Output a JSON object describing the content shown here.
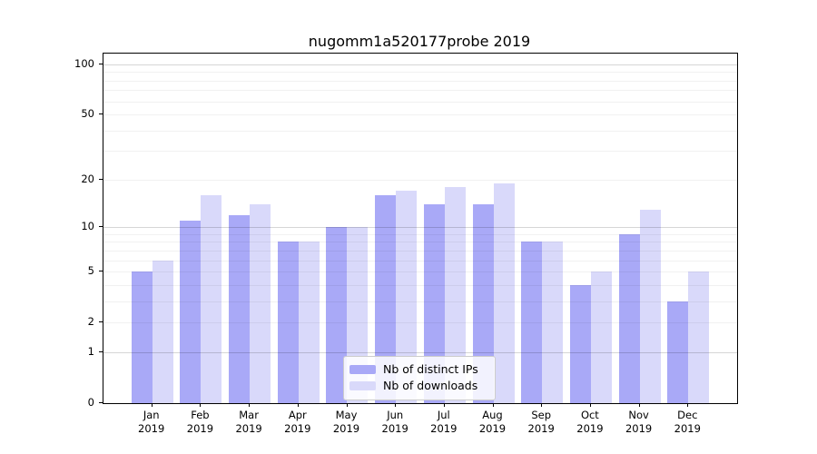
{
  "chart_data": {
    "type": "bar",
    "title": "nugomm1a520177probe 2019",
    "xlabel": "",
    "ylabel": "",
    "categories": [
      "Jan",
      "Feb",
      "Mar",
      "Apr",
      "May",
      "Jun",
      "Jul",
      "Aug",
      "Sep",
      "Oct",
      "Nov",
      "Dec"
    ],
    "x_year_label": "2019",
    "series": [
      {
        "name": "Nb of distinct IPs",
        "color": "#a9a9f7",
        "values": [
          5,
          11,
          12,
          8,
          10,
          16,
          14,
          14,
          8,
          4,
          9,
          3
        ]
      },
      {
        "name": "Nb of downloads",
        "color": "#d9d9fa",
        "values": [
          6,
          16,
          14,
          8,
          10,
          17,
          18,
          19,
          8,
          5,
          13,
          5
        ]
      }
    ],
    "y_axis": {
      "scale": "log1p",
      "ylim": [
        0,
        116
      ],
      "labeled_ticks": [
        0,
        1,
        2,
        5,
        10,
        20,
        50,
        100
      ],
      "major_gridlines": [
        1,
        10,
        100
      ],
      "minor_gridlines": [
        2,
        3,
        4,
        5,
        6,
        7,
        8,
        9,
        20,
        30,
        40,
        50,
        60,
        70,
        80,
        90
      ]
    },
    "legend": {
      "position": "inside-bottom-center",
      "entries": [
        "Nb of distinct IPs",
        "Nb of downloads"
      ]
    },
    "grid": "on"
  }
}
